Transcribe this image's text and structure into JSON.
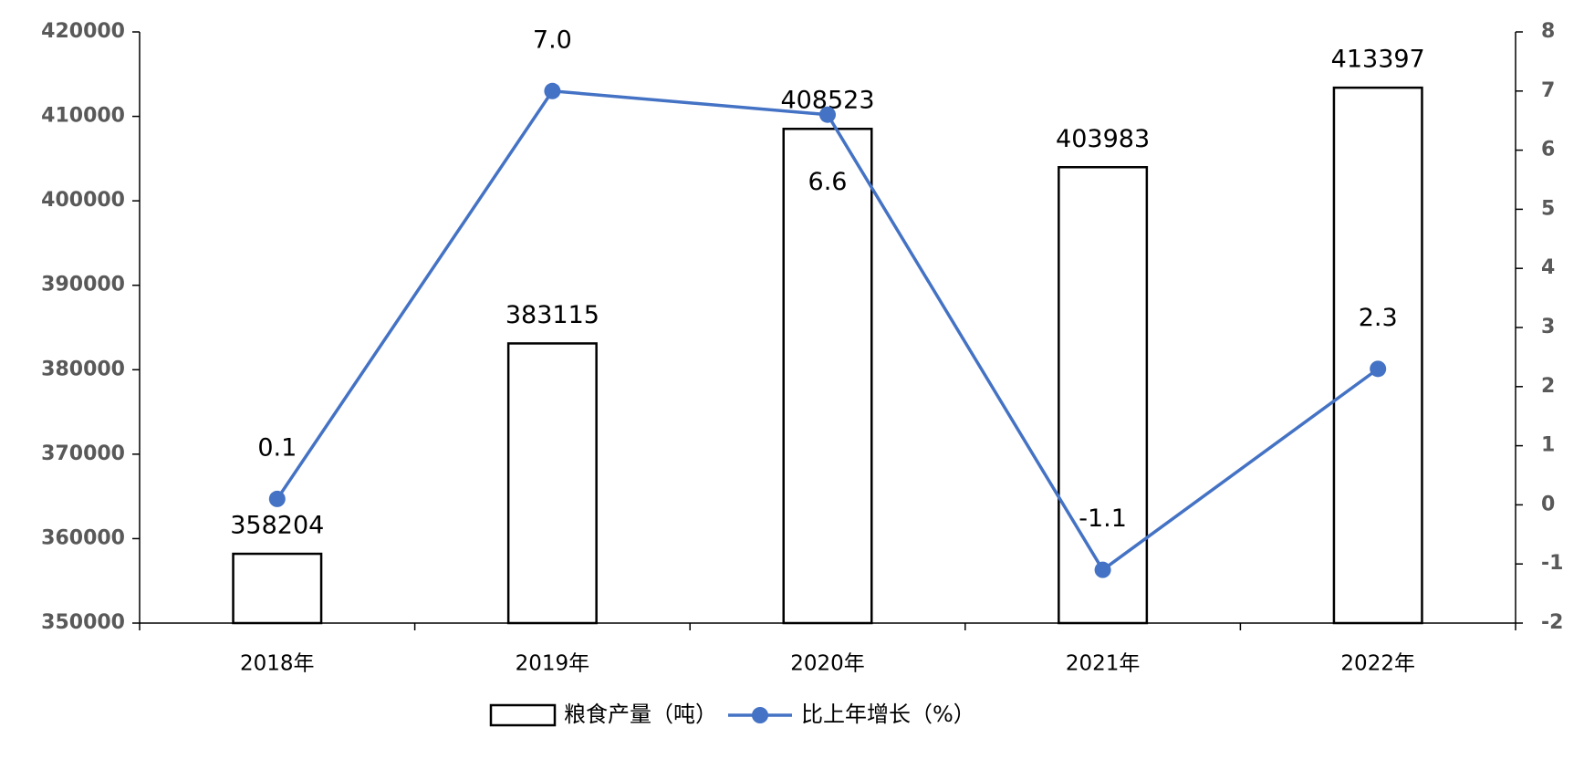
{
  "chart_data": {
    "type": "bar",
    "categories": [
      "2018年",
      "2019年",
      "2020年",
      "2021年",
      "2022年"
    ],
    "series": [
      {
        "name": "粮食产量（吨）",
        "type": "bar",
        "color": "#ffffff",
        "values": [
          358204,
          383115,
          408523,
          403983,
          413397
        ]
      },
      {
        "name": "比上年增长（%）",
        "type": "line",
        "axis": "y2",
        "color": "#4472c4",
        "values": [
          0.1,
          7.0,
          6.6,
          -1.1,
          2.3
        ],
        "value_labels": [
          "0.1",
          "7.0",
          "6.6",
          "-1.1",
          "2.3"
        ]
      }
    ],
    "ylim": [
      350000,
      420000
    ],
    "yticks": [
      350000,
      360000,
      370000,
      380000,
      390000,
      400000,
      410000,
      420000
    ],
    "y2lim": [
      -2,
      8
    ],
    "y2ticks": [
      -2,
      -1,
      0,
      1,
      2,
      3,
      4,
      5,
      6,
      7,
      8
    ],
    "legend": "bottom"
  }
}
